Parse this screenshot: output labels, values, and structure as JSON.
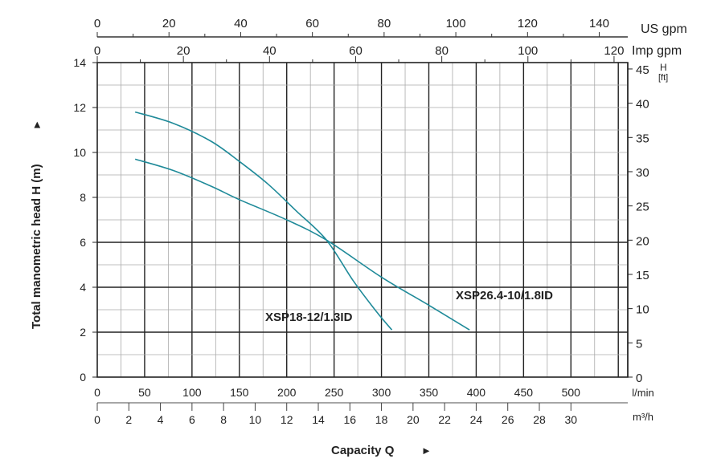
{
  "chart_data": {
    "type": "line",
    "ylabel": "Total manometric head H (m)",
    "xlabel": "Capacity Q",
    "arrow": "►",
    "y_ticks": [
      0,
      2,
      4,
      6,
      8,
      10,
      12,
      14
    ],
    "ylim": [
      0,
      14
    ],
    "ft_ticks": [
      0,
      5,
      10,
      15,
      20,
      25,
      30,
      35,
      40,
      45
    ],
    "ft_label": "H",
    "ft_unit": "[ft]",
    "lmin_ticks": [
      0,
      50,
      100,
      150,
      200,
      250,
      300,
      350,
      400,
      450,
      500
    ],
    "lmin_label": "l/min",
    "xlim": [
      0,
      560
    ],
    "m3h_ticks": [
      0,
      2,
      4,
      6,
      8,
      10,
      12,
      14,
      16,
      18,
      20,
      22,
      24,
      26,
      28,
      30
    ],
    "m3h_label": "m³/h",
    "usgpm_ticks": [
      0,
      20,
      40,
      60,
      80,
      100,
      120,
      140
    ],
    "usgpm_label": "US gpm",
    "impgpm_ticks": [
      0,
      20,
      40,
      60,
      80,
      100,
      120
    ],
    "impgpm_label": "Imp gpm",
    "series": [
      {
        "name": "XSP18-12/1.3ID",
        "color": "#1f8a99",
        "x": [
          40,
          80,
          120,
          150,
          180,
          210,
          242,
          270,
          295,
          311
        ],
        "y": [
          11.8,
          11.3,
          10.5,
          9.6,
          8.6,
          7.4,
          6.1,
          4.3,
          2.9,
          2.1
        ]
      },
      {
        "name": "XSP26.4-10/1.8ID",
        "color": "#1f8a99",
        "x": [
          40,
          80,
          120,
          150,
          200,
          242,
          300,
          350,
          393
        ],
        "y": [
          9.7,
          9.2,
          8.5,
          7.9,
          7.0,
          6.1,
          4.45,
          3.2,
          2.1
        ]
      }
    ]
  }
}
